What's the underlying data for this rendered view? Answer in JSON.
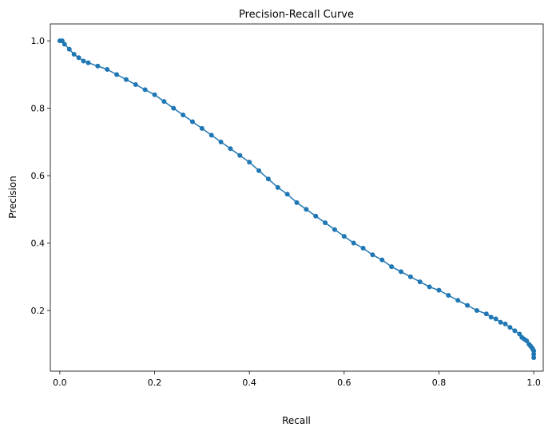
{
  "chart_data": {
    "type": "line",
    "title": "Precision-Recall Curve",
    "xlabel": "Recall",
    "ylabel": "Precision",
    "xlim": [
      -0.02,
      1.02
    ],
    "ylim": [
      0.02,
      1.05
    ],
    "xticks": [
      0.0,
      0.2,
      0.4,
      0.6,
      0.8,
      1.0
    ],
    "xtick_labels": [
      "0.0",
      "0.2",
      "0.4",
      "0.6",
      "0.8",
      "1.0"
    ],
    "yticks": [
      0.2,
      0.4,
      0.6,
      0.8,
      1.0
    ],
    "ytick_labels": [
      "0.2",
      "0.4",
      "0.6",
      "0.8",
      "1.0"
    ],
    "grid": false,
    "marker": "circle",
    "color": "#1f77b4",
    "series": [
      {
        "x": [
          0.0,
          0.005,
          0.01,
          0.02,
          0.03,
          0.04,
          0.05,
          0.06,
          0.08,
          0.1,
          0.12,
          0.14,
          0.16,
          0.18,
          0.2,
          0.22,
          0.24,
          0.26,
          0.28,
          0.3,
          0.32,
          0.34,
          0.36,
          0.38,
          0.4,
          0.42,
          0.44,
          0.46,
          0.48,
          0.5,
          0.52,
          0.54,
          0.56,
          0.58,
          0.6,
          0.62,
          0.64,
          0.66,
          0.68,
          0.7,
          0.72,
          0.74,
          0.76,
          0.78,
          0.8,
          0.82,
          0.84,
          0.86,
          0.88,
          0.9,
          0.91,
          0.92,
          0.93,
          0.94,
          0.95,
          0.96,
          0.97,
          0.975,
          0.98,
          0.985,
          0.99,
          0.993,
          0.996,
          0.998,
          1.0,
          1.0,
          1.0
        ],
        "y": [
          1.0,
          1.0,
          0.99,
          0.975,
          0.96,
          0.95,
          0.94,
          0.935,
          0.925,
          0.915,
          0.9,
          0.885,
          0.87,
          0.855,
          0.84,
          0.82,
          0.8,
          0.78,
          0.76,
          0.74,
          0.72,
          0.7,
          0.68,
          0.66,
          0.64,
          0.615,
          0.59,
          0.565,
          0.545,
          0.52,
          0.5,
          0.48,
          0.46,
          0.44,
          0.42,
          0.4,
          0.385,
          0.365,
          0.35,
          0.33,
          0.315,
          0.3,
          0.285,
          0.27,
          0.26,
          0.245,
          0.23,
          0.215,
          0.2,
          0.19,
          0.18,
          0.175,
          0.165,
          0.16,
          0.15,
          0.14,
          0.13,
          0.12,
          0.115,
          0.11,
          0.1,
          0.095,
          0.09,
          0.085,
          0.08,
          0.07,
          0.06
        ]
      }
    ]
  }
}
